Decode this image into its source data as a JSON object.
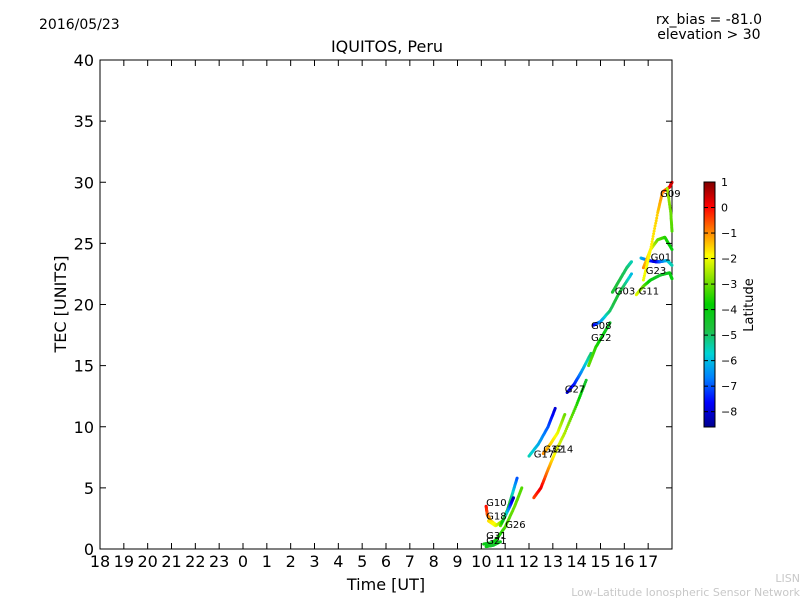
{
  "header": {
    "date": "2016/05/23",
    "rx_bias": "rx_bias = -81.0",
    "elevation": "elevation > 30"
  },
  "footer": {
    "line1": "LISN",
    "line2": "Low-Latitude Ionospheric Sensor Network"
  },
  "chart_data": {
    "type": "scatter",
    "title": "IQUITOS, Peru",
    "xlabel": "Time [UT]",
    "ylabel": "TEC [UNITS]",
    "x_tick_labels": [
      "18",
      "19",
      "20",
      "21",
      "22",
      "23",
      "0",
      "1",
      "2",
      "3",
      "4",
      "5",
      "6",
      "7",
      "8",
      "9",
      "10",
      "11",
      "12",
      "13",
      "14",
      "15",
      "16",
      "17"
    ],
    "xlim": [
      -6,
      18
    ],
    "ylim": [
      0,
      40
    ],
    "y_ticks": [
      0,
      5,
      10,
      15,
      20,
      25,
      30,
      35,
      40
    ],
    "grid": false,
    "colorbar": {
      "label": "Latitude",
      "ticks": [
        1,
        0,
        -1,
        -2,
        -3,
        -4,
        -5,
        -6,
        -7,
        -8
      ],
      "range": [
        -8.6,
        1.0
      ],
      "colormap": [
        "#00008f",
        "#0000ff",
        "#0080ff",
        "#00d4d4",
        "#20c040",
        "#00d000",
        "#80e000",
        "#ffff00",
        "#ff8000",
        "#ff0000",
        "#800000"
      ]
    },
    "series": [
      {
        "name": "G10",
        "label_at": [
          10.2,
          3.5
        ],
        "points": [
          [
            10.2,
            3.5,
            0.0
          ],
          [
            10.25,
            2.8,
            -0.6
          ],
          [
            10.4,
            2.3,
            -1.4
          ],
          [
            10.6,
            2.0,
            -2.0
          ]
        ]
      },
      {
        "name": "G18",
        "label_at": [
          10.2,
          2.4
        ],
        "points": [
          [
            10.3,
            2.3,
            -1.6
          ],
          [
            10.6,
            1.9,
            -2.0
          ],
          [
            10.9,
            2.3,
            -3.0
          ],
          [
            11.1,
            3.2,
            -4.0
          ],
          [
            11.3,
            4.5,
            -5.5
          ],
          [
            11.5,
            5.8,
            -7.0
          ]
        ]
      },
      {
        "name": "G26",
        "label_at": [
          11.0,
          1.7
        ],
        "points": [
          [
            10.8,
            1.9,
            -3.0
          ],
          [
            11.0,
            2.7,
            -5.0
          ],
          [
            11.2,
            3.5,
            -7.0
          ],
          [
            11.35,
            4.2,
            -8.3
          ]
        ]
      },
      {
        "name": "G31",
        "label_at": [
          10.2,
          0.8
        ],
        "points": [
          [
            10.1,
            0.4,
            -4.0
          ],
          [
            10.4,
            0.5,
            -4.5
          ],
          [
            10.6,
            0.7,
            -4.0
          ],
          [
            11.0,
            1.8,
            -3.2
          ],
          [
            11.4,
            3.5,
            -3.0
          ],
          [
            11.7,
            5.0,
            -3.2
          ]
        ]
      },
      {
        "name": "G21",
        "label_at": [
          10.2,
          0.4
        ],
        "points": [
          [
            10.2,
            0.2,
            -4.0
          ],
          [
            10.5,
            0.3,
            -4.5
          ],
          [
            10.8,
            0.6,
            -4.2
          ]
        ]
      },
      {
        "name": "G17",
        "label_at": [
          12.2,
          7.5
        ],
        "points": [
          [
            12.0,
            7.6,
            -5.5
          ],
          [
            12.4,
            8.6,
            -6.2
          ],
          [
            12.8,
            10.0,
            -7.0
          ],
          [
            13.1,
            11.5,
            -8.0
          ]
        ]
      },
      {
        "name": "G14",
        "label_at": [
          13.0,
          7.9
        ],
        "points": [
          [
            12.2,
            4.2,
            -0.5
          ],
          [
            12.5,
            5.0,
            0.2
          ],
          [
            12.8,
            6.5,
            -1.0
          ],
          [
            13.1,
            7.9,
            -2.0
          ],
          [
            13.5,
            9.5,
            -2.5
          ],
          [
            14.0,
            11.8,
            -3.5
          ],
          [
            14.4,
            13.8,
            -4.5
          ]
        ]
      },
      {
        "name": "G32",
        "label_at": [
          12.6,
          7.9
        ],
        "points": [
          [
            12.6,
            7.8,
            -1.0
          ],
          [
            12.9,
            8.6,
            -1.5
          ],
          [
            13.2,
            9.5,
            -2.0
          ],
          [
            13.5,
            11.0,
            -3.0
          ]
        ]
      },
      {
        "name": "G27",
        "label_at": [
          13.5,
          12.8
        ],
        "points": [
          [
            13.6,
            12.8,
            -8.0
          ],
          [
            13.9,
            13.5,
            -7.5
          ],
          [
            14.2,
            14.5,
            -6.5
          ],
          [
            14.6,
            16.0,
            -5.0
          ]
        ]
      },
      {
        "name": "G08",
        "label_at": [
          14.6,
          18.0
        ],
        "points": [
          [
            14.7,
            18.3,
            -8.0
          ],
          [
            15.0,
            18.6,
            -6.5
          ],
          [
            15.4,
            19.5,
            -5.0
          ],
          [
            15.8,
            21.0,
            -4.5
          ],
          [
            16.3,
            22.5,
            -6.0
          ]
        ]
      },
      {
        "name": "G22",
        "label_at": [
          14.6,
          17.0
        ],
        "points": [
          [
            14.5,
            15.0,
            -3.0
          ],
          [
            14.8,
            16.5,
            -3.5
          ],
          [
            15.1,
            17.5,
            -4.0
          ],
          [
            15.4,
            18.5,
            -4.5
          ]
        ]
      },
      {
        "name": "G03",
        "label_at": [
          15.6,
          20.8
        ],
        "points": [
          [
            15.5,
            21.0,
            -4.5
          ],
          [
            15.8,
            22.0,
            -4.8
          ],
          [
            16.1,
            23.0,
            -5.0
          ],
          [
            16.3,
            23.5,
            -5.5
          ]
        ]
      },
      {
        "name": "G11",
        "label_at": [
          16.6,
          20.8
        ],
        "points": [
          [
            16.5,
            20.8,
            -2.0
          ],
          [
            16.8,
            21.5,
            -3.0
          ],
          [
            17.1,
            22.0,
            -4.0
          ],
          [
            17.5,
            22.4,
            -4.5
          ],
          [
            17.9,
            22.6,
            -4.2
          ],
          [
            18.0,
            22.1,
            -4.0
          ]
        ]
      },
      {
        "name": "G01",
        "label_at": [
          17.1,
          23.6
        ],
        "points": [
          [
            16.7,
            23.8,
            -6.0
          ],
          [
            17.0,
            23.6,
            -7.0
          ],
          [
            17.3,
            23.5,
            -8.0
          ],
          [
            17.5,
            23.5,
            -7.0
          ],
          [
            17.8,
            23.6,
            -6.0
          ],
          [
            18.0,
            23.2,
            -5.5
          ]
        ]
      },
      {
        "name": "G23",
        "label_at": [
          16.9,
          22.5
        ],
        "points": [
          [
            16.8,
            23.0,
            -1.0
          ],
          [
            17.1,
            24.5,
            -2.0
          ],
          [
            17.4,
            25.3,
            -3.0
          ],
          [
            17.7,
            25.5,
            -3.5
          ],
          [
            18.0,
            24.5,
            -4.0
          ]
        ]
      },
      {
        "name": "G09",
        "label_at": [
          17.5,
          28.8
        ],
        "points": [
          [
            16.8,
            22.0,
            -2.0
          ],
          [
            17.1,
            24.5,
            -1.8
          ],
          [
            17.4,
            27.5,
            -1.5
          ],
          [
            17.6,
            29.2,
            -1.0
          ],
          [
            17.9,
            29.6,
            0.0
          ],
          [
            18.0,
            30.0,
            0.5
          ]
        ]
      },
      {
        "name": "",
        "label_at": null,
        "points": [
          [
            17.8,
            29.5,
            -2.5
          ],
          [
            17.95,
            27.5,
            -3.0
          ],
          [
            18.0,
            26.0,
            -3.2
          ]
        ]
      }
    ]
  }
}
